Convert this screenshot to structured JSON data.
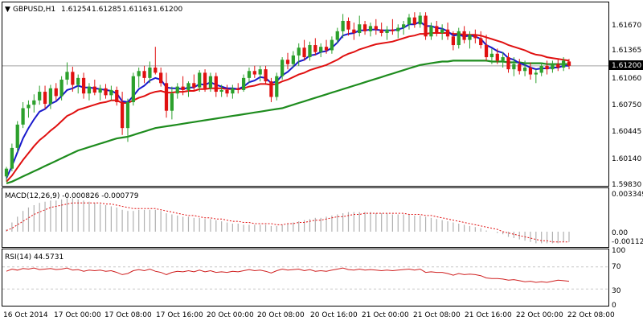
{
  "chart_header": {
    "symbol": "GBPUSD,H1",
    "ohlc": [
      "1.61254",
      "1.61285",
      "1.61163",
      "1.61200"
    ],
    "triangle": "▼"
  },
  "price_axis": {
    "ticks": [
      "1.61670",
      "1.61365",
      "1.61060",
      "1.60750",
      "1.60445",
      "1.60140",
      "1.59830"
    ],
    "current_label": "1.61200"
  },
  "macd_panel": {
    "title": "MACD(12,26,9) -0.000826 -0.000779",
    "ticks": [
      "0.003349",
      "0.00",
      "-0.001125"
    ]
  },
  "rsi_panel": {
    "title": "RSI(14) 44.5731",
    "ticks": [
      "70",
      "30"
    ],
    "levels": [
      70,
      30
    ],
    "extra_ticks": [
      "100",
      "0"
    ]
  },
  "time_axis": {
    "labels": [
      "16 Oct 2014",
      "17 Oct 00:00",
      "17 Oct 08:00",
      "17 Oct 16:00",
      "20 Oct 00:00",
      "20 Oct 08:00",
      "20 Oct 16:00",
      "21 Oct 00:00",
      "21 Oct 08:00",
      "21 Oct 16:00",
      "22 Oct 00:00",
      "22 Oct 08:00"
    ]
  },
  "colors": {
    "bull": "#2ca02c",
    "bear": "#e01010",
    "ma_fast": "#1a1acc",
    "ma_mid": "#e01010",
    "ma_slow": "#1e8c1e",
    "ma_thin": "#000000",
    "macd_hist": "#b0b0b0",
    "macd_signal": "#e01010",
    "rsi_line": "#d02020",
    "grid": "#c8c8c8",
    "price_line": "#a0a0a0"
  },
  "chart_data": {
    "type": "candlestick",
    "price_range": [
      1.5983,
      1.6185
    ],
    "candles": [
      [
        1.5992,
        1.6003,
        1.5986,
        1.6001
      ],
      [
        1.6001,
        1.603,
        1.5998,
        1.6025
      ],
      [
        1.6025,
        1.6056,
        1.602,
        1.6052
      ],
      [
        1.6052,
        1.6078,
        1.6048,
        1.6071
      ],
      [
        1.6071,
        1.608,
        1.606,
        1.6075
      ],
      [
        1.6075,
        1.6087,
        1.6066,
        1.608
      ],
      [
        1.608,
        1.6097,
        1.6075,
        1.609
      ],
      [
        1.609,
        1.6097,
        1.607,
        1.6076
      ],
      [
        1.6076,
        1.6098,
        1.607,
        1.6094
      ],
      [
        1.6094,
        1.61,
        1.608,
        1.6085
      ],
      [
        1.6085,
        1.6108,
        1.608,
        1.6104
      ],
      [
        1.6104,
        1.6124,
        1.6098,
        1.6113
      ],
      [
        1.6113,
        1.6119,
        1.609,
        1.6098
      ],
      [
        1.6098,
        1.611,
        1.6088,
        1.6106
      ],
      [
        1.6106,
        1.6112,
        1.6082,
        1.6088
      ],
      [
        1.6088,
        1.61,
        1.608,
        1.6096
      ],
      [
        1.6096,
        1.6104,
        1.6086,
        1.6089
      ],
      [
        1.6089,
        1.6098,
        1.608,
        1.6094
      ],
      [
        1.6094,
        1.6099,
        1.6082,
        1.6086
      ],
      [
        1.6086,
        1.6097,
        1.608,
        1.6092
      ],
      [
        1.6092,
        1.6096,
        1.6074,
        1.6078
      ],
      [
        1.6078,
        1.609,
        1.604,
        1.6048
      ],
      [
        1.6048,
        1.6082,
        1.6032,
        1.6078
      ],
      [
        1.6078,
        1.6112,
        1.6074,
        1.6108
      ],
      [
        1.6108,
        1.6118,
        1.6095,
        1.6114
      ],
      [
        1.6114,
        1.612,
        1.61,
        1.6106
      ],
      [
        1.6106,
        1.6125,
        1.61,
        1.6118
      ],
      [
        1.6118,
        1.6142,
        1.611,
        1.6112
      ],
      [
        1.6112,
        1.6118,
        1.6096,
        1.61
      ],
      [
        1.61,
        1.6112,
        1.606,
        1.6068
      ],
      [
        1.6068,
        1.6096,
        1.6058,
        1.6088
      ],
      [
        1.6088,
        1.61,
        1.6082,
        1.6096
      ],
      [
        1.6096,
        1.6108,
        1.6086,
        1.6092
      ],
      [
        1.6092,
        1.6102,
        1.6084,
        1.61
      ],
      [
        1.61,
        1.611,
        1.6092,
        1.6095
      ],
      [
        1.6095,
        1.6115,
        1.609,
        1.6112
      ],
      [
        1.6112,
        1.6116,
        1.609,
        1.6094
      ],
      [
        1.6094,
        1.6112,
        1.609,
        1.6108
      ],
      [
        1.6108,
        1.6112,
        1.6084,
        1.609
      ],
      [
        1.609,
        1.6098,
        1.6084,
        1.6092
      ],
      [
        1.6092,
        1.6098,
        1.6084,
        1.6088
      ],
      [
        1.6088,
        1.6098,
        1.6082,
        1.6094
      ],
      [
        1.6094,
        1.61,
        1.6088,
        1.6092
      ],
      [
        1.6092,
        1.611,
        1.609,
        1.6106
      ],
      [
        1.6106,
        1.6118,
        1.61,
        1.6114
      ],
      [
        1.6114,
        1.612,
        1.6106,
        1.611
      ],
      [
        1.611,
        1.612,
        1.6102,
        1.6116
      ],
      [
        1.6116,
        1.612,
        1.6098,
        1.6102
      ],
      [
        1.6102,
        1.6106,
        1.6078,
        1.6084
      ],
      [
        1.6084,
        1.6112,
        1.608,
        1.6108
      ],
      [
        1.6108,
        1.613,
        1.6104,
        1.6127
      ],
      [
        1.6127,
        1.6135,
        1.6116,
        1.6122
      ],
      [
        1.6122,
        1.6137,
        1.6118,
        1.6132
      ],
      [
        1.6132,
        1.6146,
        1.612,
        1.6141
      ],
      [
        1.6141,
        1.615,
        1.6126,
        1.613
      ],
      [
        1.613,
        1.6148,
        1.6126,
        1.6144
      ],
      [
        1.6144,
        1.6152,
        1.6132,
        1.6136
      ],
      [
        1.6136,
        1.6146,
        1.613,
        1.6142
      ],
      [
        1.6142,
        1.615,
        1.6134,
        1.6138
      ],
      [
        1.6138,
        1.6154,
        1.6134,
        1.615
      ],
      [
        1.615,
        1.6164,
        1.6146,
        1.616
      ],
      [
        1.616,
        1.618,
        1.6152,
        1.6172
      ],
      [
        1.6172,
        1.6176,
        1.6155,
        1.6162
      ],
      [
        1.6162,
        1.617,
        1.615,
        1.6158
      ],
      [
        1.6158,
        1.6178,
        1.6154,
        1.6168
      ],
      [
        1.6168,
        1.6172,
        1.6156,
        1.616
      ],
      [
        1.616,
        1.617,
        1.6154,
        1.6166
      ],
      [
        1.6166,
        1.6174,
        1.6156,
        1.6162
      ],
      [
        1.6162,
        1.617,
        1.6154,
        1.6158
      ],
      [
        1.6158,
        1.6166,
        1.615,
        1.6162
      ],
      [
        1.6162,
        1.6174,
        1.6156,
        1.616
      ],
      [
        1.616,
        1.6168,
        1.6152,
        1.6164
      ],
      [
        1.6164,
        1.6172,
        1.6156,
        1.6168
      ],
      [
        1.6168,
        1.618,
        1.6162,
        1.6176
      ],
      [
        1.6176,
        1.6182,
        1.6164,
        1.6168
      ],
      [
        1.6168,
        1.6182,
        1.6164,
        1.6178
      ],
      [
        1.6178,
        1.6182,
        1.615,
        1.6154
      ],
      [
        1.6154,
        1.617,
        1.615,
        1.6166
      ],
      [
        1.6166,
        1.6172,
        1.6154,
        1.6158
      ],
      [
        1.6158,
        1.6168,
        1.615,
        1.6162
      ],
      [
        1.6162,
        1.617,
        1.615,
        1.6154
      ],
      [
        1.6154,
        1.616,
        1.6138,
        1.6144
      ],
      [
        1.6144,
        1.6164,
        1.614,
        1.616
      ],
      [
        1.616,
        1.6166,
        1.6146,
        1.615
      ],
      [
        1.615,
        1.616,
        1.614,
        1.6156
      ],
      [
        1.6156,
        1.6162,
        1.6146,
        1.6152
      ],
      [
        1.6152,
        1.616,
        1.614,
        1.6144
      ],
      [
        1.6144,
        1.6156,
        1.6126,
        1.613
      ],
      [
        1.613,
        1.614,
        1.6122,
        1.6134
      ],
      [
        1.6134,
        1.614,
        1.6122,
        1.6126
      ],
      [
        1.6126,
        1.6136,
        1.6118,
        1.613
      ],
      [
        1.613,
        1.6135,
        1.6112,
        1.6116
      ],
      [
        1.6116,
        1.613,
        1.6108,
        1.6122
      ],
      [
        1.6122,
        1.6128,
        1.611,
        1.6114
      ],
      [
        1.6114,
        1.6126,
        1.6108,
        1.6118
      ],
      [
        1.6118,
        1.6124,
        1.6104,
        1.611
      ],
      [
        1.611,
        1.6116,
        1.61,
        1.6112
      ],
      [
        1.6112,
        1.6124,
        1.6108,
        1.612
      ],
      [
        1.612,
        1.6126,
        1.611,
        1.6116
      ],
      [
        1.6116,
        1.6126,
        1.6112,
        1.6122
      ],
      [
        1.6122,
        1.6128,
        1.6114,
        1.6118
      ],
      [
        1.6118,
        1.613,
        1.6114,
        1.6126
      ],
      [
        1.6125,
        1.6128,
        1.6116,
        1.612
      ]
    ],
    "ma_fast": [
      1.599,
      1.6004,
      1.602,
      1.6036,
      1.6048,
      1.6058,
      1.6067,
      1.607,
      1.6076,
      1.6079,
      1.6085,
      1.6092,
      1.6094,
      1.6097,
      1.6095,
      1.6095,
      1.6094,
      1.6093,
      1.6092,
      1.6091,
      1.6088,
      1.6079,
      1.6078,
      1.6085,
      1.6093,
      1.6097,
      1.6103,
      1.6106,
      1.6104,
      1.6095,
      1.6094,
      1.6094,
      1.6093,
      1.6095,
      1.6095,
      1.6099,
      1.6098,
      1.6101,
      1.6098,
      1.6096,
      1.6094,
      1.6094,
      1.6093,
      1.6096,
      1.6101,
      1.6103,
      1.6107,
      1.6106,
      1.61,
      1.6102,
      1.6109,
      1.6113,
      1.6119,
      1.6125,
      1.6127,
      1.6132,
      1.6133,
      1.6136,
      1.6137,
      1.6141,
      1.6147,
      1.6155,
      1.6157,
      1.6158,
      1.6161,
      1.6161,
      1.6162,
      1.6162,
      1.6161,
      1.6161,
      1.6161,
      1.6162,
      1.6164,
      1.6168,
      1.6168,
      1.6171,
      1.6166,
      1.6166,
      1.6164,
      1.6163,
      1.616,
      1.6155,
      1.6156,
      1.6154,
      1.6155,
      1.6154,
      1.6151,
      1.6144,
      1.6141,
      1.6137,
      1.6135,
      1.6129,
      1.6127,
      1.6123,
      1.6121,
      1.6118,
      1.6116,
      1.6117,
      1.6117,
      1.6118,
      1.6118,
      1.612,
      1.612
    ],
    "ma_mid": [
      1.5986,
      1.5993,
      1.6002,
      1.6011,
      1.6019,
      1.6027,
      1.6034,
      1.6039,
      1.6045,
      1.605,
      1.6056,
      1.6062,
      1.6065,
      1.6069,
      1.6071,
      1.6073,
      1.6075,
      1.6077,
      1.6078,
      1.608,
      1.608,
      1.6077,
      1.6077,
      1.608,
      1.6083,
      1.6085,
      1.6088,
      1.609,
      1.6091,
      1.6089,
      1.6089,
      1.609,
      1.609,
      1.6091,
      1.6091,
      1.6093,
      1.6093,
      1.6094,
      1.6094,
      1.6094,
      1.6093,
      1.6093,
      1.6093,
      1.6094,
      1.6096,
      1.6097,
      1.6099,
      1.6099,
      1.6098,
      1.6099,
      1.6102,
      1.6104,
      1.6107,
      1.611,
      1.6112,
      1.6115,
      1.6117,
      1.6119,
      1.6121,
      1.6124,
      1.6127,
      1.6131,
      1.6134,
      1.6136,
      1.6139,
      1.6141,
      1.6143,
      1.6145,
      1.6146,
      1.6147,
      1.6148,
      1.615,
      1.6152,
      1.6154,
      1.6155,
      1.6157,
      1.6157,
      1.6158,
      1.6158,
      1.6158,
      1.6158,
      1.6157,
      1.6157,
      1.6156,
      1.6156,
      1.6156,
      1.6155,
      1.6153,
      1.6151,
      1.6149,
      1.6147,
      1.6144,
      1.6142,
      1.614,
      1.6138,
      1.6135,
      1.6133,
      1.6132,
      1.613,
      1.6129,
      1.6128,
      1.6127,
      1.6126
    ],
    "ma_slow": [
      1.5984,
      1.5986,
      1.5989,
      1.5992,
      1.5995,
      1.5998,
      1.6001,
      1.6004,
      1.6007,
      1.601,
      1.6013,
      1.6016,
      1.6019,
      1.6022,
      1.6024,
      1.6026,
      1.6028,
      1.603,
      1.6032,
      1.6034,
      1.6036,
      1.6037,
      1.6038,
      1.604,
      1.6042,
      1.6044,
      1.6046,
      1.6048,
      1.6049,
      1.605,
      1.6051,
      1.6052,
      1.6053,
      1.6054,
      1.6055,
      1.6056,
      1.6057,
      1.6058,
      1.6059,
      1.606,
      1.6061,
      1.6062,
      1.6063,
      1.6064,
      1.6065,
      1.6066,
      1.6067,
      1.6068,
      1.6069,
      1.607,
      1.6071,
      1.6073,
      1.6075,
      1.6077,
      1.6079,
      1.6081,
      1.6083,
      1.6085,
      1.6087,
      1.6089,
      1.6091,
      1.6093,
      1.6095,
      1.6097,
      1.6099,
      1.6101,
      1.6103,
      1.6105,
      1.6107,
      1.6109,
      1.6111,
      1.6113,
      1.6115,
      1.6117,
      1.6119,
      1.6121,
      1.6122,
      1.6123,
      1.6124,
      1.6125,
      1.6125,
      1.6126,
      1.6126,
      1.6126,
      1.6126,
      1.6126,
      1.6126,
      1.6126,
      1.6125,
      1.6125,
      1.6125,
      1.6124,
      1.6124,
      1.6124,
      1.6123,
      1.6123,
      1.6123,
      1.6123,
      1.6122,
      1.6122,
      1.6122,
      1.6122,
      1.6122
    ],
    "macd_hist": [
      0.0002,
      0.0008,
      0.0013,
      0.0018,
      0.0021,
      0.0023,
      0.0025,
      0.0026,
      0.0027,
      0.0027,
      0.0028,
      0.0029,
      0.0029,
      0.0028,
      0.0027,
      0.0026,
      0.0025,
      0.0024,
      0.0023,
      0.0022,
      0.0021,
      0.0019,
      0.0018,
      0.0018,
      0.0019,
      0.0019,
      0.0019,
      0.0019,
      0.0018,
      0.0016,
      0.0015,
      0.0014,
      0.0013,
      0.0013,
      0.0012,
      0.0012,
      0.0011,
      0.0011,
      0.001,
      0.0009,
      0.0008,
      0.0007,
      0.0007,
      0.0006,
      0.0006,
      0.0006,
      0.0006,
      0.0006,
      0.0005,
      0.0005,
      0.0006,
      0.0007,
      0.0008,
      0.0009,
      0.001,
      0.0011,
      0.0012,
      0.0012,
      0.0013,
      0.0014,
      0.0015,
      0.0016,
      0.0017,
      0.0017,
      0.0017,
      0.0017,
      0.0017,
      0.0016,
      0.0016,
      0.0016,
      0.0015,
      0.0015,
      0.0015,
      0.0015,
      0.0014,
      0.0014,
      0.0013,
      0.0012,
      0.0011,
      0.001,
      0.0009,
      0.0008,
      0.0007,
      0.0006,
      0.0005,
      0.0004,
      0.0003,
      0.0001,
      0.0,
      -0.0001,
      -0.0002,
      -0.0004,
      -0.0005,
      -0.0006,
      -0.0007,
      -0.0008,
      -0.0009,
      -0.0009,
      -0.0009,
      -0.0009,
      -0.0009,
      -0.0008,
      -0.0008
    ],
    "macd_signal": [
      0.0001,
      0.0003,
      0.0006,
      0.0009,
      0.0012,
      0.0015,
      0.0017,
      0.0019,
      0.0021,
      0.0022,
      0.0023,
      0.0024,
      0.0025,
      0.0025,
      0.0025,
      0.0025,
      0.0025,
      0.0025,
      0.0024,
      0.0024,
      0.0023,
      0.0022,
      0.0021,
      0.002,
      0.002,
      0.002,
      0.002,
      0.002,
      0.0019,
      0.0018,
      0.0017,
      0.0016,
      0.0015,
      0.0014,
      0.0014,
      0.0013,
      0.0012,
      0.0012,
      0.0011,
      0.0011,
      0.001,
      0.0009,
      0.0009,
      0.0008,
      0.0008,
      0.0007,
      0.0007,
      0.0007,
      0.0007,
      0.0006,
      0.0006,
      0.0007,
      0.0007,
      0.0008,
      0.0008,
      0.0009,
      0.001,
      0.001,
      0.0011,
      0.0012,
      0.0013,
      0.0013,
      0.0014,
      0.0015,
      0.0015,
      0.0016,
      0.0016,
      0.0016,
      0.0016,
      0.0016,
      0.0016,
      0.0016,
      0.0016,
      0.0015,
      0.0015,
      0.0015,
      0.0014,
      0.0014,
      0.0013,
      0.0012,
      0.0011,
      0.001,
      0.0009,
      0.0008,
      0.0007,
      0.0006,
      0.0005,
      0.0004,
      0.0003,
      0.0002,
      0.0,
      -0.0001,
      -0.0002,
      -0.0003,
      -0.0004,
      -0.0005,
      -0.0006,
      -0.0007,
      -0.0007,
      -0.0008,
      -0.0008,
      -0.0008,
      -0.0008
    ],
    "rsi": [
      62,
      66,
      64,
      67,
      66,
      68,
      65,
      66,
      67,
      65,
      66,
      68,
      64,
      65,
      62,
      64,
      63,
      64,
      62,
      63,
      60,
      56,
      58,
      63,
      65,
      63,
      66,
      62,
      60,
      56,
      60,
      62,
      61,
      63,
      61,
      64,
      61,
      63,
      60,
      61,
      60,
      62,
      61,
      63,
      65,
      63,
      64,
      62,
      59,
      63,
      66,
      64,
      65,
      66,
      63,
      65,
      62,
      63,
      62,
      64,
      66,
      68,
      65,
      64,
      66,
      64,
      65,
      64,
      63,
      64,
      63,
      64,
      65,
      66,
      64,
      66,
      60,
      61,
      60,
      60,
      58,
      55,
      58,
      56,
      57,
      56,
      54,
      50,
      49,
      49,
      48,
      46,
      47,
      45,
      43,
      44,
      42,
      43,
      42,
      44,
      46,
      45,
      44
    ]
  }
}
